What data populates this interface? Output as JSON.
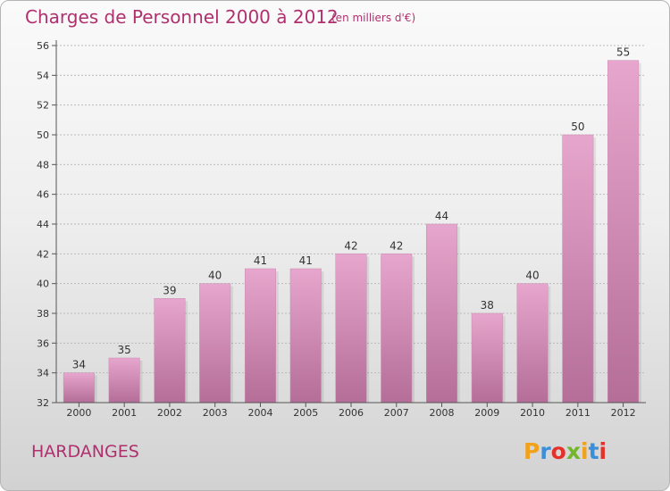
{
  "header": {
    "title": "Charges de Personnel 2000 à 2012",
    "subtitle": "(en milliers d'€)"
  },
  "footer": {
    "commune": "HARDANGES",
    "logo_letters": [
      "P",
      "r",
      "o",
      "x",
      "i",
      "t",
      "i"
    ],
    "logo_colors": [
      "#f2a21a",
      "#3a8fd8",
      "#e6312a",
      "#73b52b",
      "#f2a21a",
      "#3a8fd8",
      "#e6312a"
    ]
  },
  "colors": {
    "title": "#b0306e",
    "bar_top": "#e7a6cd",
    "bar_bottom": "#b46e98",
    "grid": "#bbbbbb",
    "axis": "#555555"
  },
  "chart_data": {
    "type": "bar",
    "categories": [
      "2000",
      "2001",
      "2002",
      "2003",
      "2004",
      "2005",
      "2006",
      "2007",
      "2008",
      "2009",
      "2010",
      "2011",
      "2012"
    ],
    "values": [
      34,
      35,
      39,
      40,
      41,
      41,
      42,
      42,
      44,
      38,
      40,
      50,
      55
    ],
    "ylim": [
      32,
      56
    ],
    "yticks": [
      32,
      34,
      36,
      38,
      40,
      42,
      44,
      46,
      48,
      50,
      52,
      54,
      56
    ],
    "data_labels": true,
    "grid": true
  }
}
